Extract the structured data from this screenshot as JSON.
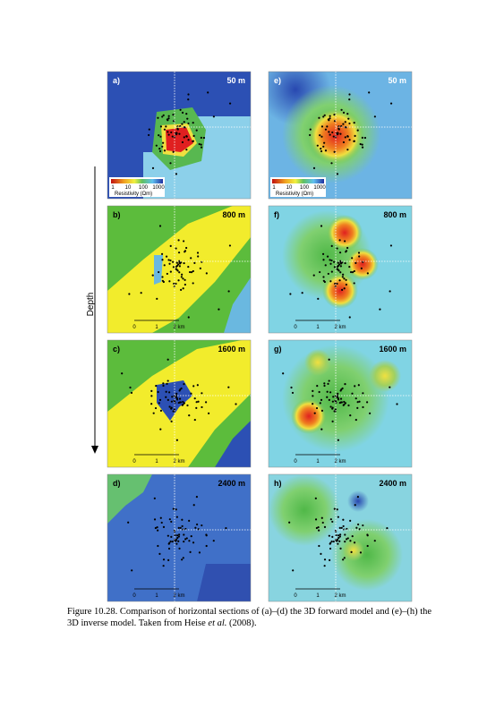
{
  "figure": {
    "depth_label": "Depth",
    "panels": [
      {
        "label": "a)",
        "depth": "50 m",
        "colorbar": {
          "ticks": [
            "1",
            "10",
            "100",
            "1000"
          ],
          "title": "Resistivity (Ωm)"
        }
      },
      {
        "label": "b)",
        "depth": "800 m",
        "scale_bar": [
          "0",
          "1",
          "2 km"
        ]
      },
      {
        "label": "c)",
        "depth": "1600 m",
        "scale_bar": [
          "0",
          "1",
          "2 km"
        ]
      },
      {
        "label": "d)",
        "depth": "2400 m",
        "scale_bar": [
          "0",
          "1",
          "2 km"
        ]
      },
      {
        "label": "e)",
        "depth": "50 m",
        "colorbar": {
          "ticks": [
            "1",
            "10",
            "100",
            "1000"
          ],
          "title": "Resistivity (Ωm)"
        }
      },
      {
        "label": "f)",
        "depth": "800 m",
        "scale_bar": [
          "0",
          "1",
          "2 km"
        ]
      },
      {
        "label": "g)",
        "depth": "1600 m",
        "scale_bar": [
          "0",
          "1",
          "2 km"
        ]
      },
      {
        "label": "h)",
        "depth": "2400 m",
        "scale_bar": [
          "0",
          "1",
          "2 km"
        ]
      }
    ]
  },
  "caption": {
    "before": "Figure 10.28.  Comparison of horizontal sections of (a)–(d) the 3D forward model and (e)–(h) the 3D inverse model. Taken from Heise ",
    "italic": "et al.",
    "after": " (2008)."
  }
}
